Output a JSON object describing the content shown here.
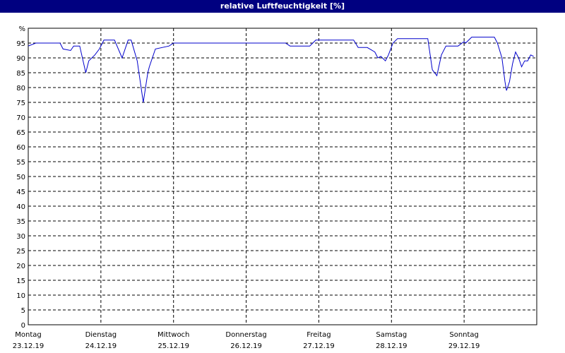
{
  "chart_data": {
    "type": "line",
    "title": "relative Luftfeuchtigkeit [%]",
    "color": "#0000cc",
    "grid": true,
    "xlim": [
      0,
      168
    ],
    "ylim": [
      0,
      100
    ],
    "xticks": [
      0,
      24,
      48,
      72,
      96,
      120,
      144
    ],
    "day_labels": [
      "Montag",
      "Dienstag",
      "Mittwoch",
      "Donnerstag",
      "Freitag",
      "Samstag",
      "Sonntag"
    ],
    "date_labels": [
      "23.12.19",
      "24.12.19",
      "25.12.19",
      "26.12.19",
      "27.12.19",
      "28.12.19",
      "29.12.19"
    ],
    "yticks": [
      0,
      5,
      10,
      15,
      20,
      25,
      30,
      35,
      40,
      45,
      50,
      55,
      60,
      65,
      70,
      75,
      80,
      85,
      90,
      95,
      {
        "value": 100,
        "label": "%"
      }
    ],
    "x": [
      0,
      2.5,
      10.5,
      11.5,
      14,
      15,
      17,
      19,
      20,
      22,
      23.5,
      25,
      28.5,
      31,
      33,
      34,
      36,
      38,
      39.5,
      40,
      42,
      46.5,
      48,
      85,
      86.5,
      93,
      95,
      107.5,
      109,
      112,
      114.5,
      115.5,
      116.5,
      118,
      119,
      120.5,
      122,
      132,
      133.5,
      135,
      136.5,
      138,
      142,
      144,
      144.5,
      146.5,
      154,
      155,
      156.5,
      157.5,
      158,
      159,
      160,
      161,
      162,
      163,
      164,
      165,
      166,
      167
    ],
    "values": [
      94,
      95,
      95,
      93,
      92.5,
      94,
      94,
      85,
      89,
      91,
      93,
      96,
      96,
      90,
      96,
      96,
      89,
      75,
      85,
      87,
      93,
      94,
      95,
      95,
      94,
      94,
      96,
      96,
      93.5,
      93.5,
      92,
      90,
      90.5,
      89,
      91,
      95,
      96.5,
      96.5,
      86,
      84,
      91,
      94,
      94,
      95.5,
      95,
      97,
      97,
      95,
      90,
      82,
      79,
      82,
      88,
      92,
      90,
      87,
      89,
      89,
      91,
      90.5
    ]
  }
}
